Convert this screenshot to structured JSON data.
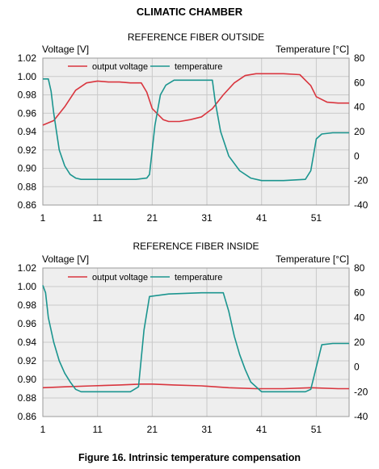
{
  "figure": {
    "main_title": "CLIMATIC CHAMBER",
    "caption": "Figure 16. Intrinsic temperature compensation"
  },
  "colors": {
    "voltage": "#d9353e",
    "temperature": "#1b958f",
    "grid": "#c9c9c9",
    "plot_bg": "#eeeeee"
  },
  "chart_data": [
    {
      "type": "line",
      "title": "REFERENCE FIBER OUTSIDE",
      "xlabel": "",
      "ylabel": "Voltage [V]",
      "y2label": "Temperature [°C]",
      "xlim": [
        1,
        57
      ],
      "ylim": [
        0.86,
        1.02
      ],
      "y2lim": [
        -40,
        80
      ],
      "x_ticks": [
        1,
        11,
        21,
        31,
        41,
        51
      ],
      "y_ticks": [
        0.86,
        0.88,
        0.9,
        0.92,
        0.94,
        0.96,
        0.98,
        1.0,
        1.02
      ],
      "y_tick_labels": [
        "0.86",
        "0.88",
        "0.90",
        "0.92",
        "0.94",
        "0.96",
        "0.98",
        "1.00",
        "1.02"
      ],
      "y2_ticks": [
        -40,
        -20,
        0,
        20,
        40,
        60,
        80
      ],
      "grid": true,
      "legend": "top",
      "series": [
        {
          "name": "output voltage",
          "axis": "left",
          "x": [
            1,
            3,
            5,
            7,
            9,
            11,
            13,
            15,
            17,
            19,
            20,
            21,
            23,
            24,
            26,
            28,
            30,
            32,
            34,
            36,
            38,
            40,
            42,
            45,
            48,
            50,
            51,
            53,
            55,
            57
          ],
          "y": [
            0.947,
            0.952,
            0.967,
            0.985,
            0.993,
            0.995,
            0.994,
            0.994,
            0.993,
            0.993,
            0.983,
            0.965,
            0.953,
            0.951,
            0.951,
            0.953,
            0.956,
            0.965,
            0.98,
            0.993,
            1.001,
            1.003,
            1.003,
            1.003,
            1.002,
            0.99,
            0.978,
            0.972,
            0.971,
            0.971
          ]
        },
        {
          "name": "temperature",
          "axis": "right",
          "x": [
            1,
            2,
            2.5,
            3,
            4,
            5,
            6,
            7,
            8,
            10,
            14,
            18,
            20,
            20.5,
            21.5,
            22.5,
            23.5,
            25,
            28,
            31,
            32,
            32.5,
            33.5,
            35,
            37,
            39,
            41,
            45,
            49,
            50,
            51,
            52,
            54,
            57
          ],
          "y": [
            63,
            63,
            53,
            35,
            5,
            -8,
            -15,
            -18,
            -19,
            -19,
            -19,
            -19,
            -18,
            -15,
            25,
            50,
            58,
            62,
            62,
            62,
            62,
            45,
            20,
            0,
            -12,
            -18,
            -20,
            -20,
            -19,
            -12,
            14,
            18,
            19,
            19
          ]
        }
      ]
    },
    {
      "type": "line",
      "title": "REFERENCE FIBER INSIDE",
      "xlabel": "",
      "ylabel": "Voltage [V]",
      "y2label": "Temperature [°C]",
      "xlim": [
        1,
        57
      ],
      "ylim": [
        0.86,
        1.02
      ],
      "y2lim": [
        -40,
        80
      ],
      "x_ticks": [
        1,
        11,
        21,
        31,
        41,
        51
      ],
      "y_ticks": [
        0.86,
        0.88,
        0.9,
        0.92,
        0.94,
        0.96,
        0.98,
        1.0,
        1.02
      ],
      "y_tick_labels": [
        "0.86",
        "0.88",
        "0.90",
        "0.92",
        "0.94",
        "0.96",
        "0.98",
        "1.00",
        "1.02"
      ],
      "y2_ticks": [
        -40,
        -20,
        0,
        20,
        40,
        60,
        80
      ],
      "grid": true,
      "legend": "top",
      "series": [
        {
          "name": "output voltage",
          "axis": "left",
          "x": [
            1,
            5,
            10,
            15,
            19,
            21,
            25,
            30,
            35,
            40,
            45,
            50,
            55,
            57
          ],
          "y": [
            0.891,
            0.892,
            0.893,
            0.894,
            0.895,
            0.895,
            0.894,
            0.893,
            0.891,
            0.89,
            0.89,
            0.891,
            0.89,
            0.89
          ],
          "y_pixel_hint": []
        },
        {
          "name": "temperature",
          "axis": "right",
          "x": [
            1,
            1.5,
            2,
            3,
            4,
            5,
            6,
            7,
            8,
            10,
            14,
            17,
            18.5,
            19.5,
            20.5,
            24,
            30,
            34,
            35,
            36,
            37,
            38,
            39,
            41,
            45,
            49,
            50,
            51,
            52,
            54,
            57
          ],
          "y": [
            66,
            60,
            40,
            20,
            5,
            -5,
            -12,
            -18,
            -20,
            -20,
            -20,
            -20,
            -16,
            30,
            57,
            59,
            60,
            60,
            45,
            25,
            10,
            -2,
            -12,
            -20,
            -20,
            -20,
            -18,
            0,
            18,
            19,
            19
          ]
        }
      ]
    }
  ]
}
